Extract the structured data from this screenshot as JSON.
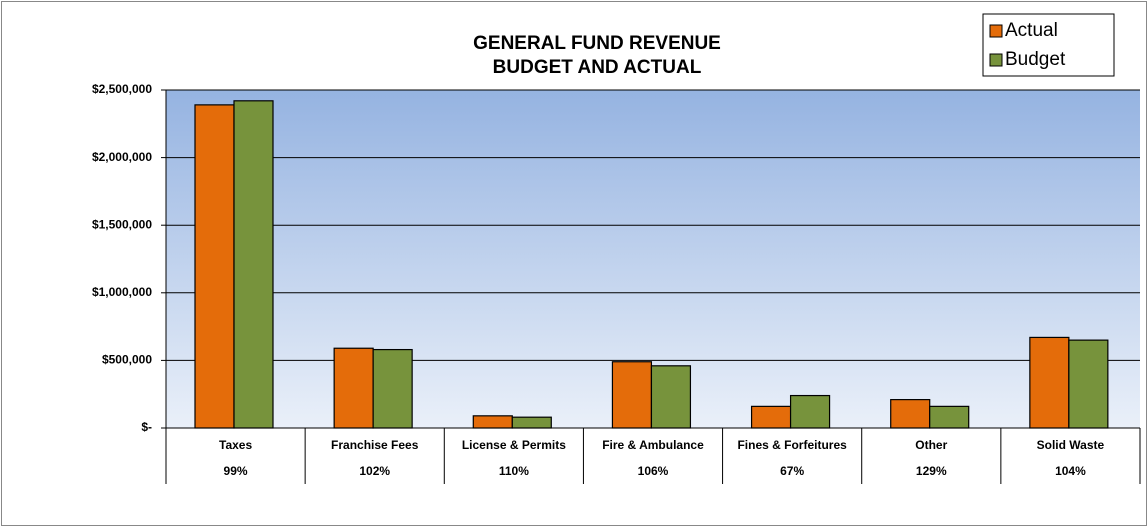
{
  "chart_data": {
    "type": "bar",
    "title": "GENERAL FUND REVENUE",
    "subtitle": "BUDGET AND ACTUAL",
    "categories": [
      "Taxes",
      "Franchise Fees",
      "License & Permits",
      "Fire & Ambulance",
      "Fines & Forfeitures",
      "Other",
      "Solid Waste"
    ],
    "subcategories": [
      "99%",
      "102%",
      "110%",
      "106%",
      "67%",
      "129%",
      "104%"
    ],
    "series": [
      {
        "name": "Actual",
        "color": "#e46c0a",
        "values": [
          2390000,
          590000,
          90000,
          490000,
          160000,
          210000,
          670000
        ]
      },
      {
        "name": "Budget",
        "color": "#77933c",
        "values": [
          2420000,
          580000,
          80000,
          460000,
          240000,
          160000,
          650000
        ]
      }
    ],
    "ylim": [
      0,
      2500000
    ],
    "yticks": [
      {
        "value": 0,
        "label": "$-"
      },
      {
        "value": 500000,
        "label": "$500,000"
      },
      {
        "value": 1000000,
        "label": "$1,000,000"
      },
      {
        "value": 1500000,
        "label": "$1,500,000"
      },
      {
        "value": 2000000,
        "label": "$2,000,000"
      },
      {
        "value": 2500000,
        "label": "$2,500,000"
      }
    ],
    "grid": true,
    "legend": "top-right"
  }
}
